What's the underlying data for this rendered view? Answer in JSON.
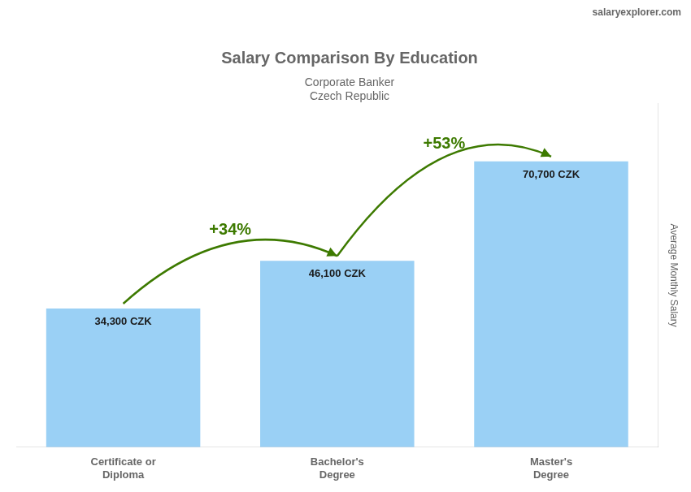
{
  "chart_data": {
    "type": "bar",
    "title": "Salary Comparison By Education",
    "subtitle": [
      "Corporate Banker",
      "Czech Republic"
    ],
    "ylabel": "Average Monthly Salary",
    "categories": [
      "Certificate or\nDiploma",
      "Bachelor's\nDegree",
      "Master's\nDegree"
    ],
    "values": [
      34300,
      46100,
      70700
    ],
    "value_labels": [
      "34,300 CZK",
      "46,100 CZK",
      "70,700 CZK"
    ],
    "data_labels": true,
    "ylim": [
      0,
      85000
    ],
    "grid": false,
    "tick_labels": "x",
    "annotations": [
      {
        "text": "+34%",
        "from": "Certificate or\nDiploma",
        "to": "Bachelor's\nDegree"
      },
      {
        "text": "+53%",
        "from": "Bachelor's\nDegree",
        "to": "Master's\nDegree"
      },
      {
        "text": "salaryexplorer.com"
      }
    ]
  }
}
